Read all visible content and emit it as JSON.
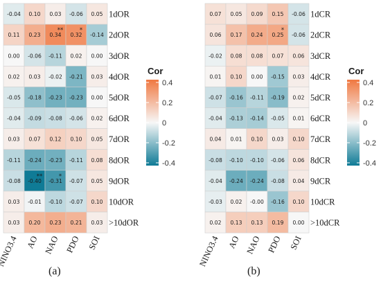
{
  "colors": {
    "negative": "#0f7b96",
    "zero": "#f7f7f7",
    "positive": "#f07841",
    "border": "#cfcfcf"
  },
  "chart_data": [
    {
      "type": "heatmap",
      "panel_label": "(a)",
      "x_categories": [
        "NINO3.4",
        "AO",
        "NAO",
        "PDO",
        "SOI"
      ],
      "y_categories": [
        "1dOR",
        "2dOR",
        "3dOR",
        "4dOR",
        "5dOR",
        "6dOR",
        "7dOR",
        "8dOR",
        "9dOR",
        "10dOR",
        ">10dOR"
      ],
      "values": [
        [
          -0.04,
          0.1,
          0.03,
          -0.06,
          0.05
        ],
        [
          0.11,
          0.23,
          0.34,
          0.32,
          -0.14
        ],
        [
          0.0,
          -0.06,
          -0.11,
          0.02,
          0.0
        ],
        [
          0.02,
          0.03,
          -0.02,
          -0.21,
          0.03
        ],
        [
          -0.05,
          -0.18,
          -0.23,
          -0.23,
          0.0
        ],
        [
          -0.04,
          -0.09,
          -0.08,
          -0.06,
          0.02
        ],
        [
          0.03,
          0.07,
          0.12,
          0.1,
          0.05
        ],
        [
          -0.11,
          -0.24,
          -0.23,
          -0.11,
          0.08
        ],
        [
          -0.08,
          -0.4,
          -0.31,
          -0.07,
          0.05
        ],
        [
          0.03,
          -0.01,
          -0.1,
          -0.07,
          0.1
        ],
        [
          0.03,
          0.2,
          0.23,
          0.21,
          0.03
        ]
      ],
      "labels": [
        [
          "-0.04",
          "0.10",
          "0.03",
          "-0.06",
          "0.05"
        ],
        [
          "0.11",
          "0.23",
          "0.34",
          "0.32",
          "-0.14"
        ],
        [
          "0.00",
          "-0.06",
          "-0.11",
          "0.02",
          "0.00"
        ],
        [
          "0.02",
          "0.03",
          "-0.02",
          "-0.21",
          "0.03"
        ],
        [
          "-0.05",
          "-0.18",
          "-0.23",
          "-0.23",
          "0.00"
        ],
        [
          "-0.04",
          "-0.09",
          "-0.08",
          "-0.06",
          "0.02"
        ],
        [
          "0.03",
          "0.07",
          "0.12",
          "0.10",
          "0.05"
        ],
        [
          "-0.11",
          "-0.24",
          "-0.23",
          "-0.11",
          "0.08"
        ],
        [
          "-0.08",
          "-0.40",
          "-0.31",
          "-0.07",
          "0.05"
        ],
        [
          "0.03",
          "-0.01",
          "-0.10",
          "-0.07",
          "0.10"
        ],
        [
          "0.03",
          "0.20",
          "0.23",
          "0.21",
          "0.03"
        ]
      ],
      "significance": [
        [
          "",
          "",
          "",
          "",
          ""
        ],
        [
          "",
          "",
          "**",
          "*",
          ""
        ],
        [
          "",
          "",
          "",
          "",
          ""
        ],
        [
          "",
          "",
          "",
          "",
          ""
        ],
        [
          "",
          "",
          "",
          "",
          ""
        ],
        [
          "",
          "",
          "",
          "",
          ""
        ],
        [
          "",
          "",
          "",
          "",
          ""
        ],
        [
          "",
          "",
          "",
          "",
          ""
        ],
        [
          "",
          "**",
          "*",
          "",
          ""
        ],
        [
          "",
          "",
          "",
          "",
          ""
        ],
        [
          "",
          "",
          "",
          "",
          ""
        ]
      ],
      "legend": {
        "title": "Cor",
        "ticks": [
          "0.4",
          "0.2",
          "0",
          "-0.2",
          "-0.4"
        ],
        "range": [
          -0.4,
          0.4
        ]
      }
    },
    {
      "type": "heatmap",
      "panel_label": "(b)",
      "x_categories": [
        "NINO3.4",
        "AO",
        "NAO",
        "PDO",
        "SOI"
      ],
      "y_categories": [
        "1dCR",
        "2dCR",
        "3dCR",
        "4dCR",
        "5dCR",
        "6dCR",
        "7dCR",
        "8dCR",
        "9dCR",
        "10dCR",
        ">10dCR"
      ],
      "values": [
        [
          0.07,
          0.05,
          0.09,
          0.15,
          -0.06
        ],
        [
          0.06,
          0.17,
          0.24,
          0.25,
          -0.06
        ],
        [
          -0.02,
          0.08,
          0.08,
          0.07,
          0.06
        ],
        [
          0.01,
          0.1,
          0.0,
          -0.15,
          0.03
        ],
        [
          -0.07,
          -0.16,
          -0.11,
          -0.19,
          0.02
        ],
        [
          -0.04,
          -0.13,
          -0.14,
          -0.05,
          0.01
        ],
        [
          0.04,
          0.01,
          0.1,
          0.03,
          0.1
        ],
        [
          -0.08,
          -0.1,
          -0.1,
          -0.06,
          0.06
        ],
        [
          -0.04,
          -0.24,
          -0.24,
          -0.08,
          0.04
        ],
        [
          -0.03,
          0.02,
          0.0,
          -0.16,
          0.1
        ],
        [
          0.02,
          0.13,
          0.13,
          0.19,
          0.0
        ]
      ],
      "labels": [
        [
          "0.07",
          "0.05",
          "0.09",
          "0.15",
          "-0.06"
        ],
        [
          "0.06",
          "0.17",
          "0.24",
          "0.25",
          "-0.06"
        ],
        [
          "-0.02",
          "0.08",
          "0.08",
          "0.07",
          "0.06"
        ],
        [
          "0.01",
          "0.10",
          "0.00",
          "-0.15",
          "0.03"
        ],
        [
          "-0.07",
          "-0.16",
          "-0.11",
          "-0.19",
          "0.02"
        ],
        [
          "-0.04",
          "-0.13",
          "-0.14",
          "-0.05",
          "0.01"
        ],
        [
          "0.04",
          "0.01",
          "0.10",
          "0.03",
          "0.10"
        ],
        [
          "-0.08",
          "-0.10",
          "-0.10",
          "-0.06",
          "0.06"
        ],
        [
          "-0.04",
          "-0.24",
          "-0.24",
          "-0.08",
          "0.04"
        ],
        [
          "-0.03",
          "0.02",
          "-0.00",
          "-0.16",
          "0.10"
        ],
        [
          "0.02",
          "0.13",
          "0.13",
          "0.19",
          "0.00"
        ]
      ],
      "significance": [
        [
          "",
          "",
          "",
          "",
          ""
        ],
        [
          "",
          "",
          "",
          "*",
          ""
        ],
        [
          "",
          "",
          "",
          "",
          ""
        ],
        [
          "",
          "",
          "",
          "",
          ""
        ],
        [
          "",
          "",
          "",
          "",
          ""
        ],
        [
          "",
          "",
          "",
          "",
          ""
        ],
        [
          "",
          "",
          "",
          "",
          ""
        ],
        [
          "",
          "",
          "",
          "",
          ""
        ],
        [
          "",
          "",
          "",
          "",
          ""
        ],
        [
          "",
          "",
          "",
          "",
          ""
        ],
        [
          "",
          "",
          "",
          "",
          ""
        ]
      ],
      "legend": {
        "title": "Cor",
        "ticks": [
          "0.4",
          "0.2",
          "0",
          "-0.2",
          "-0.4"
        ],
        "range": [
          -0.4,
          0.4
        ]
      }
    }
  ]
}
